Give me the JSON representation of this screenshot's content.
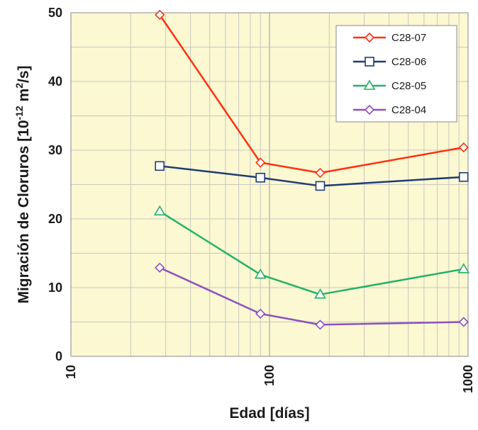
{
  "chart_data": {
    "type": "line",
    "title": "",
    "xlabel": "Edad [días]",
    "ylabel": {
      "prefix": "Migración de Cloruros [10",
      "exp1": "-12",
      "mid": " m",
      "exp2": "2",
      "suffix": "/s]"
    },
    "x_scale": "log",
    "xlim": [
      10,
      1000
    ],
    "ylim": [
      0,
      50
    ],
    "x_ticks": [
      10,
      100,
      1000
    ],
    "y_ticks": [
      0,
      10,
      20,
      30,
      40,
      50
    ],
    "grid": true,
    "legend_position": "top-right",
    "x": [
      28,
      90,
      180,
      950
    ],
    "series": [
      {
        "name": "C28-07",
        "color": "#ff3010",
        "marker": "diamond",
        "values": [
          49.7,
          28.2,
          26.7,
          30.4
        ]
      },
      {
        "name": "C28-06",
        "color": "#1f3b73",
        "marker": "square",
        "values": [
          27.7,
          26.0,
          24.8,
          26.1
        ]
      },
      {
        "name": "C28-05",
        "color": "#22b266",
        "marker": "triangle",
        "values": [
          21.1,
          11.9,
          9.0,
          12.7
        ]
      },
      {
        "name": "C28-04",
        "color": "#8d4fbd",
        "marker": "diamond",
        "values": [
          12.9,
          6.2,
          4.6,
          5.0
        ]
      }
    ]
  }
}
